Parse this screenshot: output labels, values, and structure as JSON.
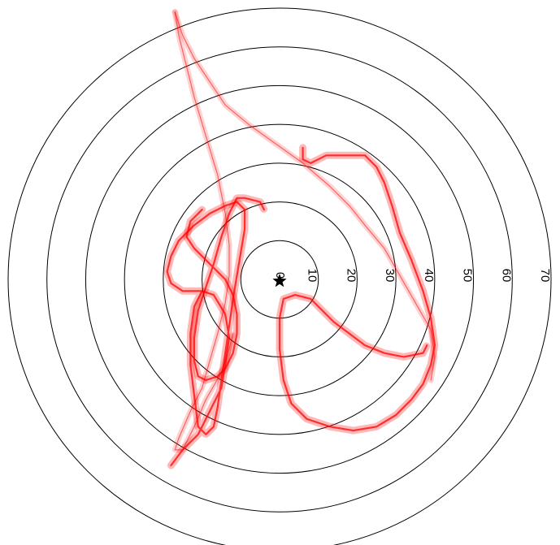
{
  "chart_data": {
    "type": "polar-trajectory",
    "title": "",
    "units": "",
    "rlim": [
      0,
      70
    ],
    "ring_values": [
      10,
      20,
      30,
      40,
      50,
      60,
      70
    ],
    "tick_labels": [
      "0",
      "10",
      "20",
      "30",
      "40",
      "50",
      "60",
      "70"
    ],
    "center_marker": "star",
    "colors": {
      "track": "#ff0000",
      "rings": "#000000",
      "marker": "#000000"
    },
    "series": [
      {
        "style": "marker-dense",
        "points": [
          [
            -27,
            69
          ],
          [
            -26,
            63
          ],
          [
            -24,
            55
          ],
          [
            -22,
            47
          ],
          [
            -19,
            37
          ],
          [
            -16,
            27
          ],
          [
            -14,
            17
          ],
          [
            -13,
            9
          ],
          [
            -13,
            1
          ],
          [
            -14,
            -6
          ],
          [
            -16,
            -14
          ],
          [
            -18,
            -21
          ],
          [
            -20,
            -28
          ],
          [
            -23,
            -34
          ],
          [
            -26,
            -41
          ],
          [
            -27,
            -44
          ],
          [
            -25,
            -44
          ],
          [
            -22,
            -38
          ],
          [
            -19,
            -31
          ],
          [
            -15,
            -24
          ],
          [
            -13,
            -18
          ],
          [
            -12,
            -14
          ]
        ]
      },
      {
        "style": "marker-dense",
        "points": [
          [
            -27,
            69
          ],
          [
            -25,
            63
          ],
          [
            -22,
            57
          ],
          [
            -18,
            51
          ],
          [
            -14,
            45
          ],
          [
            -8,
            40
          ],
          [
            -1,
            35
          ],
          [
            6,
            30
          ],
          [
            13,
            24
          ],
          [
            18,
            19
          ],
          [
            22,
            14
          ],
          [
            27,
            8
          ],
          [
            31,
            1
          ],
          [
            35,
            -6
          ],
          [
            39,
            -13
          ],
          [
            40,
            -20
          ],
          [
            39,
            -26
          ]
        ]
      },
      {
        "style": "bold",
        "points": [
          [
            -28,
            -48
          ],
          [
            -25,
            -44
          ],
          [
            -21,
            -40
          ],
          [
            -18,
            -34
          ],
          [
            -15,
            -28
          ],
          [
            -14,
            -22
          ],
          [
            -13,
            -15
          ],
          [
            -14,
            -9
          ],
          [
            -17,
            -4
          ],
          [
            -20,
            -3
          ],
          [
            -22,
            -7
          ],
          [
            -23,
            -14
          ],
          [
            -23,
            -22
          ],
          [
            -22,
            -30
          ],
          [
            -21,
            -38
          ],
          [
            -19,
            -40
          ],
          [
            -17,
            -38
          ],
          [
            -16,
            -33
          ],
          [
            -15,
            -26
          ],
          [
            -14,
            -19
          ],
          [
            -13,
            -12
          ],
          [
            -12,
            -5
          ],
          [
            -11,
            1
          ],
          [
            -10,
            7
          ],
          [
            -9,
            13
          ],
          [
            -9,
            18
          ],
          [
            -11,
            20
          ],
          [
            -14,
            19
          ],
          [
            -18,
            17
          ],
          [
            -22,
            14
          ],
          [
            -26,
            10
          ],
          [
            -28,
            6
          ],
          [
            -29,
            2
          ],
          [
            -28,
            -1
          ],
          [
            -25,
            -3
          ],
          [
            -20,
            -3
          ]
        ]
      },
      {
        "style": "bold",
        "points": [
          [
            -20,
            18
          ],
          [
            -23,
            15
          ],
          [
            -24,
            11
          ],
          [
            -22,
            8
          ],
          [
            -18,
            4
          ],
          [
            -14,
            0
          ],
          [
            -12,
            -4
          ],
          [
            -11,
            -9
          ],
          [
            -11,
            -14
          ],
          [
            -12,
            -19
          ],
          [
            -14,
            -23
          ],
          [
            -16,
            -25
          ],
          [
            -19,
            -26
          ],
          [
            -21,
            -25
          ],
          [
            -22,
            -21
          ],
          [
            -22,
            -15
          ],
          [
            -21,
            -8
          ],
          [
            -19,
            -2
          ],
          [
            -17,
            4
          ],
          [
            -15,
            11
          ],
          [
            -13,
            17
          ],
          [
            -11,
            21
          ],
          [
            -9,
            21
          ],
          [
            -5,
            20
          ],
          [
            -4,
            18
          ]
        ]
      },
      {
        "style": "bold",
        "points": [
          [
            6,
            34
          ],
          [
            6,
            31
          ],
          [
            8,
            30
          ],
          [
            12,
            32
          ],
          [
            18,
            32
          ],
          [
            22,
            32
          ],
          [
            25,
            29
          ],
          [
            27,
            25
          ],
          [
            29,
            19
          ],
          [
            31,
            12
          ],
          [
            34,
            5
          ],
          [
            37,
            -3
          ],
          [
            39,
            -10
          ],
          [
            40,
            -17
          ],
          [
            39,
            -22
          ],
          [
            37,
            -27
          ],
          [
            34,
            -31
          ],
          [
            30,
            -35
          ],
          [
            25,
            -38
          ],
          [
            19,
            -39
          ],
          [
            13,
            -38
          ],
          [
            7,
            -36
          ],
          [
            3,
            -32
          ],
          [
            1,
            -26
          ],
          [
            0,
            -18
          ],
          [
            0,
            -10
          ],
          [
            1,
            -5
          ],
          [
            4,
            -4
          ],
          [
            8,
            -5
          ],
          [
            11,
            -8
          ],
          [
            14,
            -11
          ],
          [
            18,
            -14
          ],
          [
            22,
            -17
          ],
          [
            27,
            -19
          ],
          [
            32,
            -20
          ],
          [
            37,
            -19
          ],
          [
            38,
            -17
          ]
        ]
      }
    ]
  }
}
